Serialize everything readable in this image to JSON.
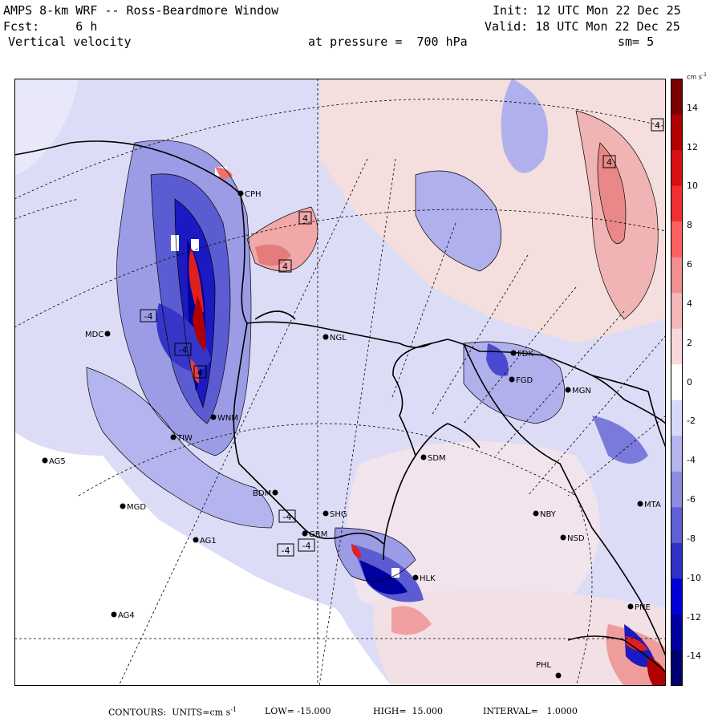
{
  "header": {
    "title": "AMPS 8-km WRF -- Ross-Beardmore Window",
    "forecast": "Fcst:     6 h",
    "field": "Vertical velocity",
    "init": "Init: 12 UTC Mon 22 Dec 25",
    "valid": "Valid: 18 UTC Mon 22 Dec 25",
    "pressure": "at pressure =  700 hPa",
    "smoothing": "sm= 5"
  },
  "colorbar": {
    "units": "cm s",
    "units_exp": "-1",
    "ticks": [
      "14",
      "12",
      "10",
      "8",
      "6",
      "4",
      "2",
      "0",
      "-2",
      "-4",
      "-6",
      "-8",
      "-10",
      "-12",
      "-14"
    ],
    "colors_top_to_bottom": [
      "#7a0000",
      "#b00000",
      "#d81010",
      "#f03030",
      "#ff6060",
      "#f09090",
      "#f4b8b8",
      "#f8d8d8",
      "#ffffff",
      "#d8d8f8",
      "#b4b4ee",
      "#8c8ce0",
      "#6060d4",
      "#3030c8",
      "#0000d8",
      "#0000a0",
      "#000070"
    ]
  },
  "stations": [
    {
      "id": "CPH",
      "label": "CPH"
    },
    {
      "id": "MDC",
      "label": "MDC"
    },
    {
      "id": "NGL",
      "label": "NGL"
    },
    {
      "id": "FDK",
      "label": "FDK"
    },
    {
      "id": "FGD",
      "label": "FGD"
    },
    {
      "id": "MGN",
      "label": "MGN"
    },
    {
      "id": "WNM",
      "label": "WNM"
    },
    {
      "id": "TIW",
      "label": "TIW"
    },
    {
      "id": "AG5",
      "label": "AG5"
    },
    {
      "id": "SDM",
      "label": "SDM"
    },
    {
      "id": "MGD",
      "label": "MGD"
    },
    {
      "id": "BDM",
      "label": "BDM"
    },
    {
      "id": "SHG",
      "label": "SHG"
    },
    {
      "id": "GRM",
      "label": "GRM"
    },
    {
      "id": "AG1",
      "label": "AG1"
    },
    {
      "id": "NBY",
      "label": "NBY"
    },
    {
      "id": "NSD",
      "label": "NSD"
    },
    {
      "id": "HLK",
      "label": "HLK"
    },
    {
      "id": "AG4",
      "label": "AG4"
    },
    {
      "id": "PNE",
      "label": "PNE"
    },
    {
      "id": "PHL",
      "label": "PHL"
    },
    {
      "id": "MTA",
      "label": "MTA"
    }
  ],
  "extrema_labels": [
    "4",
    "4",
    "4",
    "4",
    "-4",
    "-4",
    "4",
    "-4",
    "-4",
    "-4"
  ],
  "footer": {
    "contours": "CONTOURS:  UNITS=cm s",
    "units_exp": "-1",
    "low": "LOW= -15.000",
    "high": "HIGH=  15.000",
    "interval": "INTERVAL=   1.0000"
  }
}
